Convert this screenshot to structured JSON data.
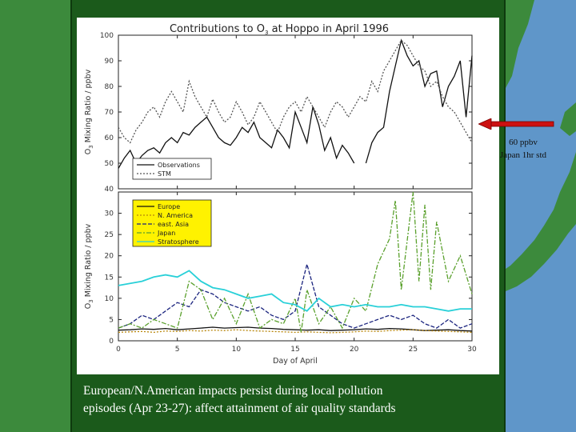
{
  "colors": {
    "ocean": "#5f96c9",
    "land": "#3c8a3c",
    "panel": "#1b5a1b",
    "arrow": "#cc1111",
    "caption": "#ffffff"
  },
  "caption": {
    "line1": "European/N.American impacts persist during local pollution",
    "line2": "episodes (Apr 23-27): affect attainment of air quality standards"
  },
  "annotation": {
    "line1": "60 ppbv",
    "line2": "Japan 1hr std"
  },
  "chart_data": [
    {
      "type": "line",
      "title_parts": [
        "Contributions to O",
        "3",
        " at Hoppo in April 1996"
      ],
      "ylabel_parts": [
        "O",
        "3",
        " Mixing Ratio  / ppbv"
      ],
      "xlabel": "",
      "xlim": [
        0,
        30
      ],
      "ylim": [
        40,
        100
      ],
      "yticks": [
        "40",
        "50",
        "60",
        "70",
        "80",
        "90",
        "100"
      ],
      "legend": [
        "Observations",
        "STM"
      ],
      "series": [
        {
          "name": "Observations",
          "color": "#111111",
          "dash": "",
          "x": [
            0,
            0.5,
            1,
            1.5,
            2,
            2.5,
            3,
            3.5,
            4,
            4.5,
            5,
            5.5,
            6,
            6.5,
            7,
            7.5,
            8,
            8.5,
            9,
            9.5,
            10,
            10.5,
            11,
            11.5,
            12,
            12.5,
            13,
            13.5,
            14,
            14.5,
            15,
            15.5,
            16,
            16.5,
            17,
            17.5,
            18,
            18.5,
            19,
            19.5,
            20,
            null,
            21,
            21.5,
            22,
            22.5,
            23,
            23.5,
            24,
            24.5,
            25,
            25.5,
            26,
            26.5,
            27,
            27.5,
            28,
            28.5,
            29,
            29.5,
            30
          ],
          "y": [
            48,
            52,
            55,
            50,
            53,
            55,
            56,
            54,
            58,
            60,
            58,
            62,
            61,
            64,
            66,
            68,
            64,
            60,
            58,
            57,
            60,
            64,
            62,
            66,
            60,
            58,
            56,
            63,
            60,
            56,
            70,
            64,
            58,
            72,
            65,
            55,
            60,
            52,
            57,
            54,
            50,
            null,
            50,
            58,
            62,
            64,
            78,
            88,
            98,
            92,
            88,
            90,
            80,
            85,
            86,
            72,
            80,
            84,
            90,
            68,
            92
          ]
        },
        {
          "name": "STM",
          "color": "#555555",
          "dash": "2,2",
          "x": [
            0,
            0.5,
            1,
            1.5,
            2,
            2.5,
            3,
            3.5,
            4,
            4.5,
            5,
            5.5,
            6,
            6.5,
            7,
            7.5,
            8,
            8.5,
            9,
            9.5,
            10,
            10.5,
            11,
            11.5,
            12,
            12.5,
            13,
            13.5,
            14,
            14.5,
            15,
            15.5,
            16,
            16.5,
            17,
            17.5,
            18,
            18.5,
            19,
            19.5,
            20,
            20.5,
            21,
            21.5,
            22,
            22.5,
            23,
            23.5,
            24,
            24.5,
            25,
            25.5,
            26,
            26.5,
            27,
            27.5,
            28,
            28.5,
            29,
            29.5,
            30
          ],
          "y": [
            64,
            60,
            58,
            63,
            66,
            70,
            72,
            68,
            74,
            78,
            74,
            70,
            82,
            76,
            72,
            68,
            75,
            70,
            66,
            68,
            74,
            70,
            65,
            68,
            74,
            70,
            66,
            62,
            68,
            72,
            74,
            70,
            76,
            72,
            68,
            64,
            70,
            74,
            72,
            68,
            72,
            76,
            74,
            82,
            78,
            86,
            90,
            94,
            98,
            96,
            92,
            88,
            86,
            80,
            82,
            76,
            72,
            70,
            66,
            62,
            58
          ]
        }
      ]
    },
    {
      "type": "line",
      "title": "",
      "ylabel_parts": [
        "O",
        "3",
        " Mixing Ratio  / ppbv"
      ],
      "xlabel": "Day of April",
      "xlim": [
        0,
        30
      ],
      "ylim": [
        0,
        35
      ],
      "xticks": [
        "0",
        "5",
        "10",
        "15",
        "20",
        "25",
        "30"
      ],
      "yticks": [
        "0",
        "5",
        "10",
        "15",
        "20",
        "25",
        "30"
      ],
      "legend": [
        "Europe",
        "N. America",
        "east. Asia",
        "Japan",
        "Stratosphere"
      ],
      "series": [
        {
          "name": "Europe",
          "color": "#111111",
          "dash": "",
          "x": [
            0,
            1,
            2,
            3,
            4,
            5,
            6,
            7,
            8,
            9,
            10,
            11,
            12,
            13,
            14,
            15,
            16,
            17,
            18,
            19,
            20,
            21,
            22,
            23,
            24,
            25,
            26,
            27,
            28,
            29,
            30
          ],
          "y": [
            2.5,
            2.6,
            2.8,
            2.7,
            2.9,
            2.6,
            2.8,
            3.0,
            3.2,
            3.0,
            3.1,
            3.2,
            3.0,
            2.9,
            2.7,
            2.6,
            2.5,
            2.6,
            2.4,
            2.5,
            2.6,
            2.8,
            2.7,
            2.9,
            2.8,
            2.6,
            2.4,
            2.5,
            2.6,
            2.4,
            2.3
          ]
        },
        {
          "name": "N. America",
          "color": "#b8860b",
          "dash": "2,2",
          "x": [
            0,
            1,
            2,
            3,
            4,
            5,
            6,
            7,
            8,
            9,
            10,
            11,
            12,
            13,
            14,
            15,
            16,
            17,
            18,
            19,
            20,
            21,
            22,
            23,
            24,
            25,
            26,
            27,
            28,
            29,
            30
          ],
          "y": [
            2.0,
            2.1,
            2.2,
            2.0,
            2.3,
            2.2,
            2.4,
            2.3,
            2.5,
            2.4,
            2.6,
            2.4,
            2.3,
            2.2,
            2.1,
            2.0,
            2.1,
            2.0,
            1.9,
            2.0,
            2.1,
            2.3,
            2.2,
            2.4,
            2.5,
            2.6,
            2.4,
            2.3,
            2.2,
            2.1,
            2.0
          ]
        },
        {
          "name": "east. Asia",
          "color": "#1a237e",
          "dash": "5,2",
          "x": [
            0,
            1,
            2,
            3,
            4,
            5,
            6,
            7,
            8,
            9,
            10,
            11,
            12,
            13,
            14,
            15,
            16,
            17,
            18,
            19,
            20,
            21,
            22,
            23,
            24,
            25,
            26,
            27,
            28,
            29,
            30
          ],
          "y": [
            3,
            4,
            6,
            5,
            7,
            9,
            8,
            12,
            11,
            9,
            8,
            7,
            8,
            6,
            5,
            7,
            18,
            8,
            6,
            4,
            3,
            4,
            5,
            6,
            5,
            6,
            4,
            3,
            5,
            3,
            4
          ]
        },
        {
          "name": "Japan",
          "color": "#5aa02c",
          "dash": "6,2,2,2",
          "x": [
            0,
            1,
            2,
            3,
            4,
            5,
            6,
            7,
            8,
            9,
            10,
            11,
            12,
            13,
            14,
            15,
            15.5,
            16,
            17,
            18,
            19,
            20,
            21,
            22,
            23,
            23.5,
            24,
            25,
            25.5,
            26,
            26.5,
            27,
            28,
            29,
            30
          ],
          "y": [
            3,
            4,
            3,
            5,
            4,
            3,
            14,
            12,
            5,
            10,
            4,
            11,
            3,
            5,
            4,
            10,
            2,
            12,
            4,
            8,
            3,
            10,
            7,
            18,
            24,
            33,
            12,
            35,
            14,
            32,
            12,
            28,
            14,
            20,
            11
          ]
        },
        {
          "name": "Stratosphere",
          "color": "#29d0d8",
          "dash": "",
          "x": [
            0,
            1,
            2,
            3,
            4,
            5,
            6,
            7,
            8,
            9,
            10,
            11,
            12,
            13,
            14,
            15,
            16,
            17,
            18,
            19,
            20,
            21,
            22,
            23,
            24,
            25,
            26,
            27,
            28,
            29,
            30
          ],
          "y": [
            13,
            13.5,
            14,
            15,
            15.5,
            15,
            16.5,
            14,
            12.5,
            12,
            11,
            10,
            10.5,
            11,
            9,
            8.5,
            7,
            10,
            8,
            8.5,
            8,
            8.5,
            8,
            8,
            8.5,
            8,
            8,
            7.5,
            7,
            7.5,
            7.5
          ]
        }
      ]
    }
  ]
}
